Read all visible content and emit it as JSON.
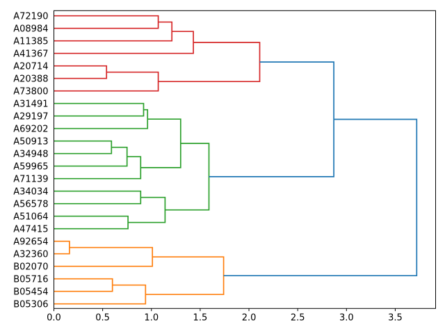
{
  "chart_data": {
    "type": "dendrogram",
    "title": "",
    "orientation": "leaves-left-root-right",
    "grid": false,
    "background_color": "#ffffff",
    "leaves": [
      "A72190",
      "A08984",
      "A11385",
      "A41367",
      "A20714",
      "A20388",
      "A73800",
      "A31491",
      "A29197",
      "A69202",
      "A50913",
      "A34948",
      "A59965",
      "A71139",
      "A34034",
      "A56578",
      "A51064",
      "A47415",
      "A92654",
      "A32360",
      "B02070",
      "B05716",
      "B05454",
      "B05306"
    ],
    "x_axis": {
      "tick_values": [
        0.0,
        0.5,
        1.0,
        1.5,
        2.0,
        2.5,
        3.0,
        3.5
      ],
      "tick_labels": [
        "0.0",
        "0.5",
        "1.0",
        "1.5",
        "2.0",
        "2.5",
        "3.0",
        "3.5"
      ],
      "range": [
        0,
        3.914
      ],
      "label": ""
    },
    "clusters": [
      {
        "name": "red-cluster",
        "color_key": "red",
        "leaf_span": [
          "A72190",
          "A73800"
        ]
      },
      {
        "name": "green-cluster",
        "color_key": "green",
        "leaf_span": [
          "A31491",
          "A47415"
        ]
      },
      {
        "name": "orange-cluster",
        "color_key": "orange",
        "leaf_span": [
          "A92654",
          "B05306"
        ]
      }
    ],
    "merges": [
      {
        "id": "R1",
        "children": [
          "A72190",
          "A08984"
        ],
        "dist": 1.07,
        "color": "red"
      },
      {
        "id": "R2",
        "children": [
          "R1",
          "A11385"
        ],
        "dist": 1.21,
        "color": "red"
      },
      {
        "id": "R3",
        "children": [
          "R2",
          "A41367"
        ],
        "dist": 1.43,
        "color": "red"
      },
      {
        "id": "R4",
        "children": [
          "A20714",
          "A20388"
        ],
        "dist": 0.54,
        "color": "red"
      },
      {
        "id": "R5",
        "children": [
          "R4",
          "A73800"
        ],
        "dist": 1.07,
        "color": "red"
      },
      {
        "id": "R6",
        "children": [
          "R3",
          "R5"
        ],
        "dist": 2.11,
        "color": "red"
      },
      {
        "id": "G1",
        "children": [
          "A31491",
          "A29197"
        ],
        "dist": 0.92,
        "color": "green"
      },
      {
        "id": "G2",
        "children": [
          "G1",
          "A69202"
        ],
        "dist": 0.96,
        "color": "green"
      },
      {
        "id": "G3",
        "children": [
          "A50913",
          "A34948"
        ],
        "dist": 0.59,
        "color": "green"
      },
      {
        "id": "G4",
        "children": [
          "G3",
          "A59965"
        ],
        "dist": 0.75,
        "color": "green"
      },
      {
        "id": "G5",
        "children": [
          "G4",
          "A71139"
        ],
        "dist": 0.89,
        "color": "green"
      },
      {
        "id": "G6",
        "children": [
          "G2",
          "G5"
        ],
        "dist": 1.3,
        "color": "green"
      },
      {
        "id": "G7",
        "children": [
          "A34034",
          "A56578"
        ],
        "dist": 0.89,
        "color": "green"
      },
      {
        "id": "G8",
        "children": [
          "A51064",
          "A47415"
        ],
        "dist": 0.76,
        "color": "green"
      },
      {
        "id": "G9",
        "children": [
          "G7",
          "G8"
        ],
        "dist": 1.14,
        "color": "green"
      },
      {
        "id": "G10",
        "children": [
          "G6",
          "G9"
        ],
        "dist": 1.59,
        "color": "green"
      },
      {
        "id": "O1",
        "children": [
          "A92654",
          "A32360"
        ],
        "dist": 0.16,
        "color": "orange"
      },
      {
        "id": "O2",
        "children": [
          "O1",
          "B02070"
        ],
        "dist": 1.01,
        "color": "orange"
      },
      {
        "id": "O3",
        "children": [
          "B05716",
          "B05454"
        ],
        "dist": 0.6,
        "color": "orange"
      },
      {
        "id": "O4",
        "children": [
          "O3",
          "B05306"
        ],
        "dist": 0.94,
        "color": "orange"
      },
      {
        "id": "O5",
        "children": [
          "O2",
          "O4"
        ],
        "dist": 1.74,
        "color": "orange"
      },
      {
        "id": "B1",
        "children": [
          "R6",
          "G10"
        ],
        "dist": 2.87,
        "color": "blue"
      },
      {
        "id": "B2",
        "children": [
          "B1",
          "O5"
        ],
        "dist": 3.72,
        "color": "blue"
      }
    ],
    "colors": {
      "blue": "#1f77b4",
      "orange": "#ff7f0e",
      "green": "#2ca02c",
      "red": "#d62728",
      "axis": "#000000",
      "text": "#000000"
    }
  }
}
